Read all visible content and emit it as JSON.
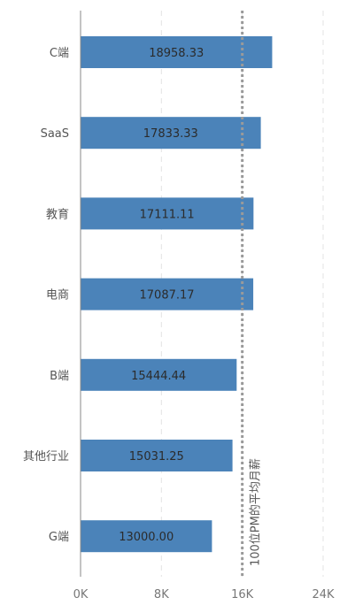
{
  "chart_data": {
    "type": "bar",
    "orientation": "horizontal",
    "categories": [
      "C端",
      "SaaS",
      "教育",
      "电商",
      "B端",
      "其他行业",
      "G端"
    ],
    "values": [
      18958.33,
      17833.33,
      17111.11,
      17087.17,
      15444.44,
      15031.25,
      13000.0
    ],
    "value_labels": [
      "18958.33",
      "17833.33",
      "17111.11",
      "17087.17",
      "15444.44",
      "15031.25",
      "13000.00"
    ],
    "xlim": [
      0,
      24000
    ],
    "x_ticks": [
      0,
      8000,
      16000,
      24000
    ],
    "x_tick_labels": [
      "0K",
      "8K",
      "16K",
      "24K"
    ],
    "grid": "vertical-dashed",
    "reference_line": {
      "value": 16000,
      "label": "100位PM的平均月薪"
    },
    "colors": {
      "bar": "#4b83b9",
      "grid": "#e3e3e3",
      "axis": "#888888",
      "reference": "#9a9a9a"
    }
  }
}
